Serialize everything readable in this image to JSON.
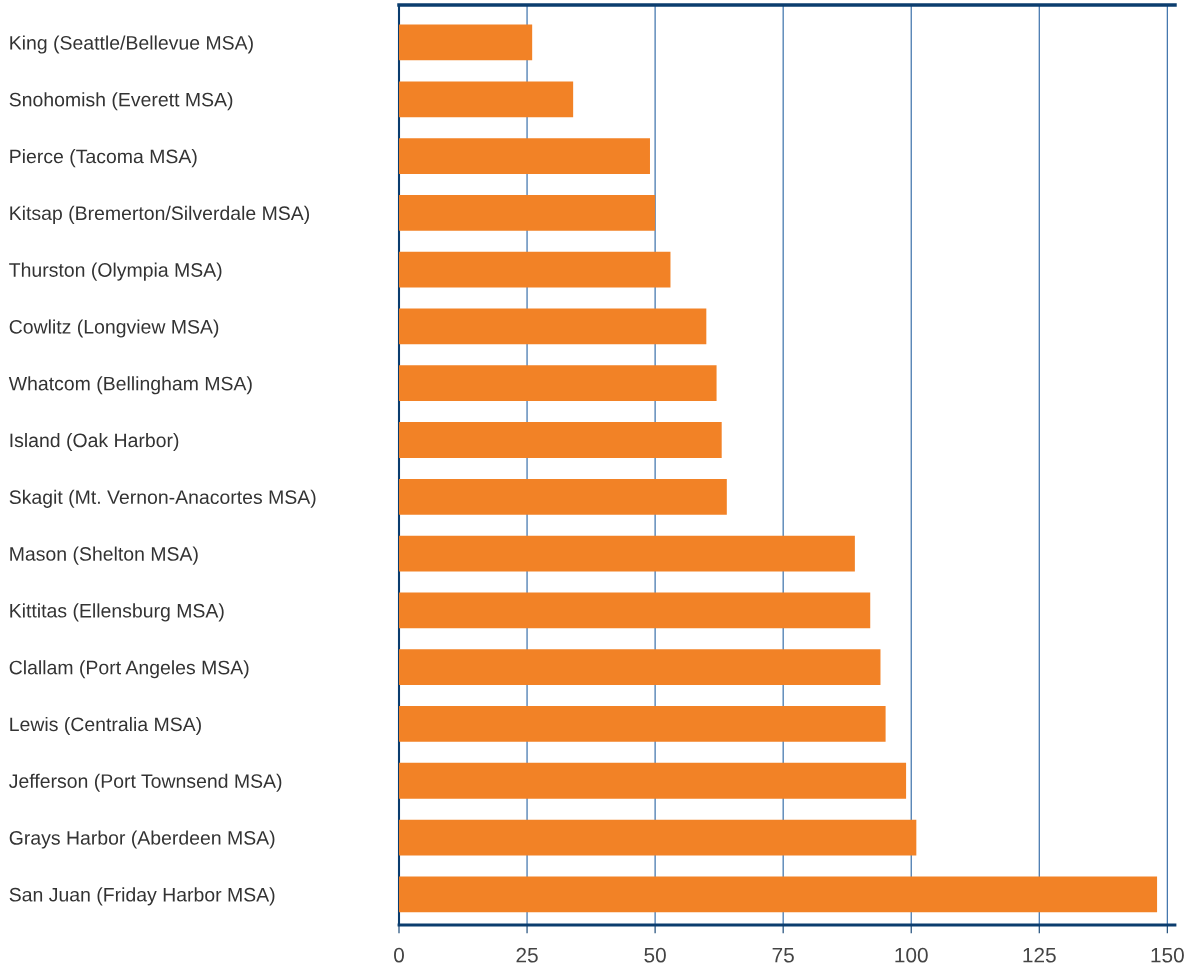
{
  "chart_data": {
    "type": "bar",
    "orientation": "horizontal",
    "categories": [
      "King (Seattle/Bellevue MSA)",
      "Snohomish (Everett MSA)",
      "Pierce (Tacoma MSA)",
      "Kitsap (Bremerton/Silverdale MSA)",
      "Thurston (Olympia MSA)",
      "Cowlitz (Longview MSA)",
      "Whatcom (Bellingham MSA)",
      "Island (Oak Harbor)",
      "Skagit (Mt. Vernon-Anacortes MSA)",
      "Mason (Shelton MSA)",
      "Kittitas (Ellensburg MSA)",
      "Clallam (Port Angeles MSA)",
      "Lewis (Centralia MSA)",
      "Jefferson (Port Townsend MSA)",
      "Grays Harbor (Aberdeen MSA)",
      "San Juan (Friday Harbor MSA)"
    ],
    "values": [
      26,
      34,
      49,
      50,
      53,
      60,
      62,
      63,
      64,
      89,
      92,
      94,
      95,
      99,
      101,
      148
    ],
    "color": "#f28226",
    "xlim": [
      0,
      151.5
    ],
    "xticks": [
      0,
      25,
      50,
      75,
      100,
      125,
      150
    ],
    "grid": "x",
    "legend": false
  }
}
